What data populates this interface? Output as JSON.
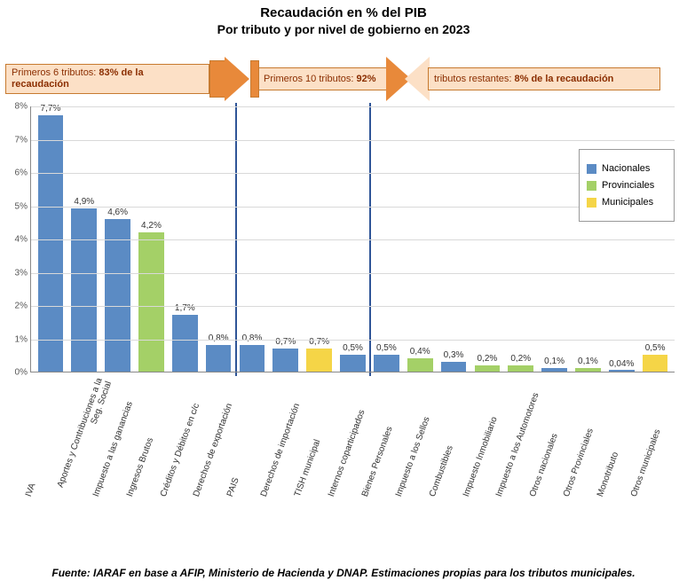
{
  "title_line1": "Recaudación en % del PIB",
  "title_line2": "Por tributo y por nivel de gobierno en 2023",
  "chart": {
    "type": "bar",
    "y_axis": {
      "min": 0,
      "max": 8,
      "step": 1,
      "suffix": "%"
    },
    "categories": [
      "IVA",
      "Aportes y Contribuciones a la Seg. Social",
      "Impuesto a las ganancias",
      "Ingresos Brutos",
      "Créditos y Débitos en c/c",
      "Derechos de exportación",
      "PAIS",
      "Derechos de importación",
      "TISH municipal",
      "Internos coparticipados",
      "Bienes Personales",
      "Impuesto a los Sellos",
      "Combustibles",
      "Impuesto Inmobiliario",
      "Impuesto a los Automotores",
      "Otros nacionales",
      "Otros Provinciales",
      "Monotributo",
      "Otros municipales"
    ],
    "values": [
      7.7,
      4.9,
      4.6,
      4.2,
      1.7,
      0.8,
      0.8,
      0.7,
      0.7,
      0.5,
      0.5,
      0.4,
      0.3,
      0.2,
      0.2,
      0.1,
      0.1,
      0.04,
      0.5
    ],
    "value_labels": [
      "7,7%",
      "4,9%",
      "4,6%",
      "4,2%",
      "1,7%",
      "0,8%",
      "0,8%",
      "0,7%",
      "0,7%",
      "0,5%",
      "0,5%",
      "0,4%",
      "0,3%",
      "0,2%",
      "0,2%",
      "0,1%",
      "0,1%",
      "0,04%",
      "0,5%"
    ],
    "level": [
      "nac",
      "nac",
      "nac",
      "prov",
      "nac",
      "nac",
      "nac",
      "nac",
      "muni",
      "nac",
      "nac",
      "prov",
      "nac",
      "prov",
      "prov",
      "nac",
      "prov",
      "nac",
      "muni"
    ],
    "colors": {
      "nac": "#5b8bc4",
      "prov": "#a4d067",
      "muni": "#f5d547",
      "grid": "#d9d9d9",
      "axis": "#888888",
      "background": "#ffffff"
    },
    "divider_after_index": [
      5,
      9
    ],
    "legend": [
      {
        "label": "Nacionales",
        "key": "nac"
      },
      {
        "label": "Provinciales",
        "key": "prov"
      },
      {
        "label": "Municipales",
        "key": "muni"
      }
    ]
  },
  "annotations": {
    "a1_prefix": "Primeros 6 tributos: ",
    "a1_bold": "83% de la recaudación",
    "a2_prefix": "Primeros 10 tributos: ",
    "a2_bold": "92%",
    "a3_prefix": "tributos restantes: ",
    "a3_bold": "8% de la recaudación",
    "banner_bg": "#fce0c6",
    "banner_border": "#c77a2f",
    "arrow_fill": "#e8893a"
  },
  "source": "Fuente: IARAF en base a AFIP, Ministerio de Hacienda y DNAP.  Estimaciones propias para los tributos municipales."
}
